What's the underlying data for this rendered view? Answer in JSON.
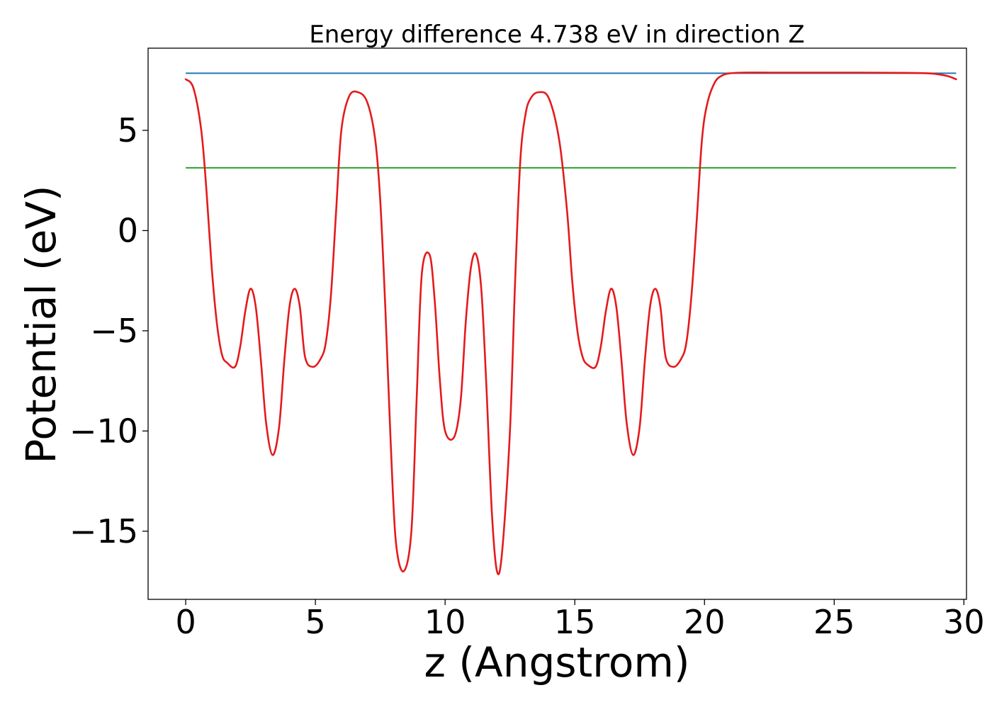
{
  "chart_data": {
    "type": "line",
    "title": "Energy difference 4.738 eV in direction Z",
    "xlabel": "z (Angstrom)",
    "ylabel": "Potential (eV)",
    "xlim": [
      -1.45,
      30.1
    ],
    "ylim": [
      -18.4,
      9.1
    ],
    "xticks": [
      0,
      5,
      10,
      15,
      20,
      25,
      30
    ],
    "xtick_labels": [
      "0",
      "5",
      "10",
      "15",
      "20",
      "25",
      "30"
    ],
    "yticks": [
      5,
      0,
      -5,
      -10,
      -15
    ],
    "ytick_labels": [
      "5",
      "0",
      "−5",
      "−10",
      "−15"
    ],
    "grid": false,
    "legend": "none",
    "series": [
      {
        "color": "#1f77b4",
        "style": "horizontal-line",
        "x": [
          0,
          29.7
        ],
        "values": [
          7.85,
          7.85
        ]
      },
      {
        "color": "#2ca02c",
        "style": "horizontal-line",
        "x": [
          0,
          29.7
        ],
        "values": [
          3.13,
          3.13
        ]
      },
      {
        "color": "#e41a1c",
        "style": "curve",
        "x": [
          0,
          0.3,
          0.6,
          0.8,
          1.0,
          1.2,
          1.4,
          1.6,
          1.9,
          2.1,
          2.3,
          2.5,
          2.7,
          2.9,
          3.1,
          3.35,
          3.6,
          3.8,
          4.0,
          4.2,
          4.4,
          4.6,
          4.9,
          5.2,
          5.4,
          5.6,
          5.8,
          6.0,
          6.3,
          6.65,
          7.0,
          7.3,
          7.5,
          7.7,
          7.9,
          8.1,
          8.4,
          8.7,
          8.9,
          9.1,
          9.4,
          9.6,
          9.8,
          10.0,
          10.35,
          10.6,
          10.8,
          11.0,
          11.2,
          11.4,
          11.6,
          11.8,
          12.0,
          12.2,
          12.5,
          12.7,
          12.9,
          13.1,
          13.3,
          13.6,
          14.0,
          14.4,
          14.7,
          14.9,
          15.1,
          15.3,
          15.5,
          15.8,
          16.0,
          16.2,
          16.4,
          16.6,
          16.8,
          17.0,
          17.25,
          17.5,
          17.7,
          17.9,
          18.1,
          18.3,
          18.5,
          18.8,
          19.1,
          19.3,
          19.5,
          19.7,
          19.9,
          20.1,
          20.4,
          20.7,
          21.0,
          21.5,
          22.5,
          24.0,
          26.0,
          27.5,
          28.5,
          29.0,
          29.4,
          29.7
        ],
        "values": [
          7.55,
          7.1,
          5.0,
          2.0,
          -1.8,
          -4.6,
          -6.2,
          -6.6,
          -6.8,
          -5.8,
          -4.0,
          -2.9,
          -3.8,
          -6.5,
          -9.6,
          -11.2,
          -9.8,
          -6.5,
          -3.8,
          -2.9,
          -3.8,
          -6.3,
          -6.8,
          -6.4,
          -5.6,
          -3.2,
          1.0,
          5.0,
          6.7,
          6.9,
          6.4,
          4.6,
          1.5,
          -4.0,
          -10.5,
          -15.5,
          -17.0,
          -15.0,
          -8.5,
          -2.2,
          -1.2,
          -3.5,
          -7.5,
          -10.0,
          -10.3,
          -8.5,
          -4.5,
          -1.8,
          -1.2,
          -3.0,
          -8.0,
          -14.0,
          -17.0,
          -16.0,
          -10.0,
          -2.5,
          3.5,
          5.8,
          6.6,
          6.9,
          6.6,
          4.5,
          1.0,
          -2.5,
          -5.0,
          -6.3,
          -6.7,
          -6.8,
          -5.8,
          -4.0,
          -2.9,
          -3.8,
          -6.5,
          -9.6,
          -11.2,
          -9.8,
          -6.5,
          -3.8,
          -2.9,
          -3.8,
          -6.3,
          -6.8,
          -6.4,
          -5.6,
          -3.2,
          0.5,
          4.5,
          6.3,
          7.4,
          7.75,
          7.85,
          7.88,
          7.88,
          7.88,
          7.88,
          7.87,
          7.85,
          7.8,
          7.7,
          7.55
        ]
      }
    ]
  }
}
